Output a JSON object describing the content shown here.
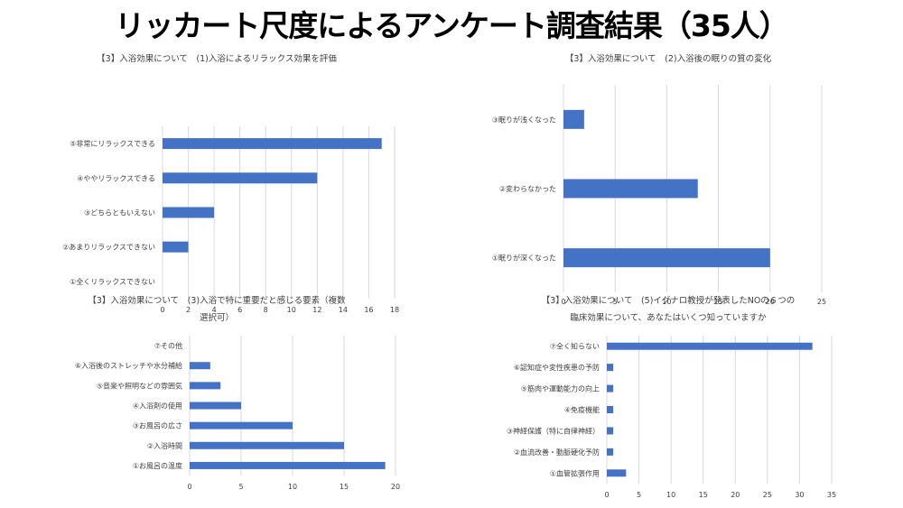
{
  "page": {
    "title": "リッカート尺度によるアンケート調査結果（35人）"
  },
  "colors": {
    "bar": "#4472C4",
    "grid": "#D9D9D9",
    "text": "#404040"
  },
  "chart_data": [
    {
      "type": "bar",
      "orientation": "horizontal",
      "title": "【3】入浴効果について　(1)入浴によるリラックス効果を評価",
      "categories": [
        "⑤非常にリラックスできる",
        "④ややリラックスできる",
        "③どちらともいえない",
        "②あまりリラックスできない",
        "①全くリラックスできない"
      ],
      "values": [
        17,
        12,
        4,
        2,
        0
      ],
      "xlim": [
        0,
        18
      ],
      "xticks": [
        "0",
        "2",
        "4",
        "6",
        "8",
        "10",
        "12",
        "14",
        "16",
        "18"
      ],
      "grid": true
    },
    {
      "type": "bar",
      "orientation": "horizontal",
      "title": "【3】入浴効果について　(2)入浴後の眠りの質の変化",
      "categories": [
        "③眠りが浅くなった",
        "②変わらなかった",
        "①眠りが深くなった"
      ],
      "values": [
        2,
        13,
        20
      ],
      "xlim": [
        0,
        25
      ],
      "xticks": [
        "0",
        "5",
        "10",
        "15",
        "20",
        "25"
      ],
      "grid": true
    },
    {
      "type": "bar",
      "orientation": "horizontal",
      "title_lines": [
        "【3】入浴効果について　(3)入浴で特に重要だと感じる要素（複数",
        "選択可）"
      ],
      "categories": [
        "⑦その他",
        "⑥入浴後のストレッチや水分補給",
        "⑤音楽や照明などの雰囲気",
        "④入浴剤の使用",
        "③お風呂の広さ",
        "②入浴時間",
        "①お風呂の温度"
      ],
      "values": [
        0,
        2,
        3,
        5,
        10,
        15,
        19
      ],
      "xlim": [
        0,
        20
      ],
      "xticks": [
        "0",
        "5",
        "10",
        "15",
        "20"
      ],
      "grid": true
    },
    {
      "type": "bar",
      "orientation": "horizontal",
      "title_lines": [
        "【3】入浴効果について　(5)イグナロ教授が発表したNOの６つの",
        "臨床効果について、あなたはいくつ知っていますか"
      ],
      "categories": [
        "⑦全く知らない",
        "⑥認知症や変性疾患の予防",
        "⑤筋肉や運動能力の向上",
        "④免疫機能",
        "③神経保護（特に自律神経）",
        "②血流改善・動脈硬化予防",
        "①血管拡張作用"
      ],
      "values": [
        32,
        1,
        1,
        1,
        1,
        1,
        3
      ],
      "xlim": [
        0,
        35
      ],
      "xticks": [
        "0",
        "5",
        "10",
        "15",
        "20",
        "25",
        "30",
        "35"
      ],
      "grid": true
    }
  ]
}
